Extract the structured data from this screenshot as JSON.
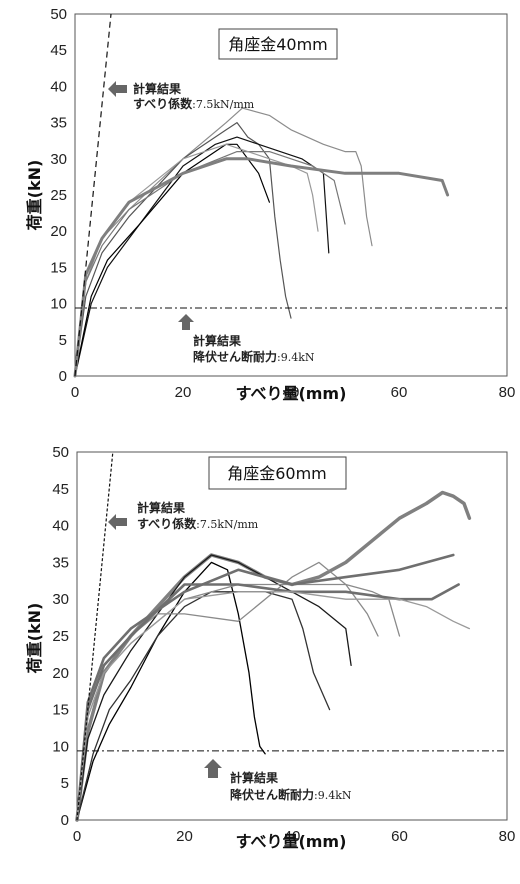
{
  "chart_data": [
    {
      "type": "line",
      "legend": "角座金40mm",
      "xlabel": "すべり量(mm)",
      "ylabel": "荷重(kN)",
      "xlim": [
        0,
        80
      ],
      "ylim": [
        0,
        50
      ],
      "xticks": [
        "0",
        "20",
        "40",
        "60",
        "80"
      ],
      "yticks": [
        "0",
        "5",
        "10",
        "15",
        "20",
        "25",
        "30",
        "35",
        "40",
        "45",
        "50"
      ],
      "annotations": {
        "slip": {
          "title": "計算結果",
          "label": "すべり係数",
          "value": ":7.5kN/mm"
        },
        "yield": {
          "title": "計算結果",
          "label": "降伏せん断耐力",
          "value": ":9.4kN"
        }
      },
      "reference_lines": {
        "slip_stiffness_kN_per_mm": 7.5,
        "yield_shear_kN": 9.4
      },
      "series": [
        {
          "color": "#8c8c8c",
          "width": 1.2,
          "x": [
            0,
            2,
            5,
            10,
            20,
            28,
            31,
            36,
            40,
            46,
            50,
            52,
            53,
            54,
            55
          ],
          "y": [
            0,
            13,
            19,
            23,
            30,
            35,
            37,
            36,
            34,
            32,
            31,
            31,
            29,
            22,
            18
          ]
        },
        {
          "color": "#555555",
          "width": 1.2,
          "x": [
            0,
            2,
            5,
            10,
            20,
            28,
            30,
            31,
            32,
            34,
            36,
            37,
            38,
            39,
            40
          ],
          "y": [
            0,
            11,
            17,
            22,
            30,
            34,
            35,
            34,
            33,
            32,
            30,
            22,
            16,
            11,
            8
          ]
        },
        {
          "color": "#111111",
          "width": 1.2,
          "x": [
            0,
            3,
            6,
            12,
            20,
            26,
            30,
            34,
            38,
            42,
            44,
            46,
            47
          ],
          "y": [
            0,
            10,
            15,
            21,
            29,
            32,
            33,
            32,
            31,
            30,
            29,
            28,
            17
          ]
        },
        {
          "color": "#000000",
          "width": 1.2,
          "x": [
            0,
            3,
            6,
            12,
            20,
            28,
            30,
            32,
            34,
            36
          ],
          "y": [
            0,
            11,
            16,
            21,
            28,
            32,
            32,
            30,
            28,
            24
          ]
        },
        {
          "color": "#777777",
          "width": 1.2,
          "x": [
            0,
            2,
            5,
            10,
            20,
            30,
            36,
            40,
            44,
            48,
            50
          ],
          "y": [
            0,
            13,
            18,
            23,
            28,
            31,
            31,
            30,
            29,
            27,
            21
          ]
        },
        {
          "color": "#999999",
          "width": 1.2,
          "x": [
            0,
            2,
            5,
            10,
            20,
            28,
            32,
            36,
            40,
            43,
            44,
            45
          ],
          "y": [
            0,
            14,
            19,
            24,
            30,
            32,
            31,
            30,
            29,
            28,
            25,
            20
          ]
        },
        {
          "color": "#7f7f7f",
          "width": 3,
          "x": [
            0,
            2,
            5,
            10,
            20,
            28,
            32,
            40,
            50,
            60,
            68,
            69
          ],
          "y": [
            0,
            14,
            19,
            24,
            28,
            30,
            30,
            29,
            28,
            28,
            27,
            25
          ]
        }
      ]
    },
    {
      "type": "line",
      "legend": "角座金60mm",
      "xlabel": "すべり量(mm)",
      "ylabel": "荷重(kN)",
      "xlim": [
        0,
        80
      ],
      "ylim": [
        0,
        50
      ],
      "xticks": [
        "0",
        "20",
        "40",
        "60",
        "80"
      ],
      "yticks": [
        "0",
        "5",
        "10",
        "15",
        "20",
        "25",
        "30",
        "35",
        "40",
        "45",
        "50"
      ],
      "annotations": {
        "slip": {
          "title": "計算結果",
          "label": "すべり係数",
          "value": ":7.5kN/mm"
        },
        "yield": {
          "title": "計算結果",
          "label": "降伏せん断耐力",
          "value": ":9.4kN"
        }
      },
      "reference_lines": {
        "slip_stiffness_kN_per_mm": 7.5,
        "yield_shear_kN": 9.4
      },
      "series": [
        {
          "color": "#808080",
          "width": 3.5,
          "x": [
            0,
            2,
            5,
            10,
            15,
            20,
            25,
            30,
            35,
            40,
            45,
            50,
            55,
            60,
            65,
            68,
            70,
            72,
            73
          ],
          "y": [
            0,
            12,
            20,
            25,
            29,
            33,
            36,
            35,
            33,
            32,
            33,
            35,
            38,
            41,
            43,
            44.5,
            44,
            43,
            41
          ]
        },
        {
          "color": "#1a1a1a",
          "width": 1.3,
          "x": [
            0,
            2,
            5,
            10,
            15,
            20,
            25,
            30,
            35,
            40,
            45,
            50,
            51
          ],
          "y": [
            0,
            11,
            17,
            23,
            28,
            33,
            36,
            35,
            33,
            31,
            29,
            26,
            21
          ]
        },
        {
          "color": "#000000",
          "width": 1.3,
          "x": [
            0,
            3,
            6,
            10,
            15,
            20,
            25,
            28,
            30,
            32,
            33,
            34,
            35
          ],
          "y": [
            0,
            8,
            13,
            18,
            25,
            31,
            35,
            34,
            28,
            20,
            14,
            10,
            9
          ]
        },
        {
          "color": "#333333",
          "width": 1.3,
          "x": [
            0,
            3,
            6,
            10,
            15,
            20,
            25,
            30,
            35,
            40,
            42,
            44,
            47
          ],
          "y": [
            0,
            9,
            15,
            19,
            25,
            29,
            31,
            31,
            31,
            30,
            26,
            20,
            15
          ]
        },
        {
          "color": "#8a8a8a",
          "width": 1.3,
          "x": [
            0,
            2,
            5,
            10,
            15,
            20,
            30,
            40,
            45,
            50,
            54,
            56
          ],
          "y": [
            0,
            15,
            21,
            25,
            28,
            28,
            27,
            33,
            35,
            32,
            28,
            25
          ]
        },
        {
          "color": "#8a8a8a",
          "width": 1.3,
          "x": [
            0,
            2,
            5,
            10,
            20,
            30,
            40,
            50,
            55,
            58,
            60
          ],
          "y": [
            0,
            14,
            20,
            24,
            30,
            32,
            32,
            32,
            31,
            30,
            25
          ]
        },
        {
          "color": "#6f6f6f",
          "width": 2.6,
          "x": [
            0,
            2,
            5,
            10,
            20,
            30,
            40,
            50,
            60,
            65,
            70
          ],
          "y": [
            0,
            16,
            22,
            26,
            31,
            34,
            32,
            33,
            34,
            35,
            36
          ]
        },
        {
          "color": "#6f6f6f",
          "width": 2.6,
          "x": [
            0,
            2,
            5,
            10,
            20,
            30,
            40,
            50,
            60,
            66,
            71
          ],
          "y": [
            0,
            15,
            21,
            25,
            32,
            32,
            31,
            31,
            30,
            30,
            32
          ]
        },
        {
          "color": "#9a9a9a",
          "width": 1.3,
          "x": [
            0,
            2,
            5,
            10,
            20,
            30,
            40,
            50,
            60,
            65,
            70,
            73
          ],
          "y": [
            0,
            14,
            20,
            24,
            30,
            31,
            31,
            30,
            30,
            29,
            27,
            26
          ]
        }
      ]
    }
  ]
}
